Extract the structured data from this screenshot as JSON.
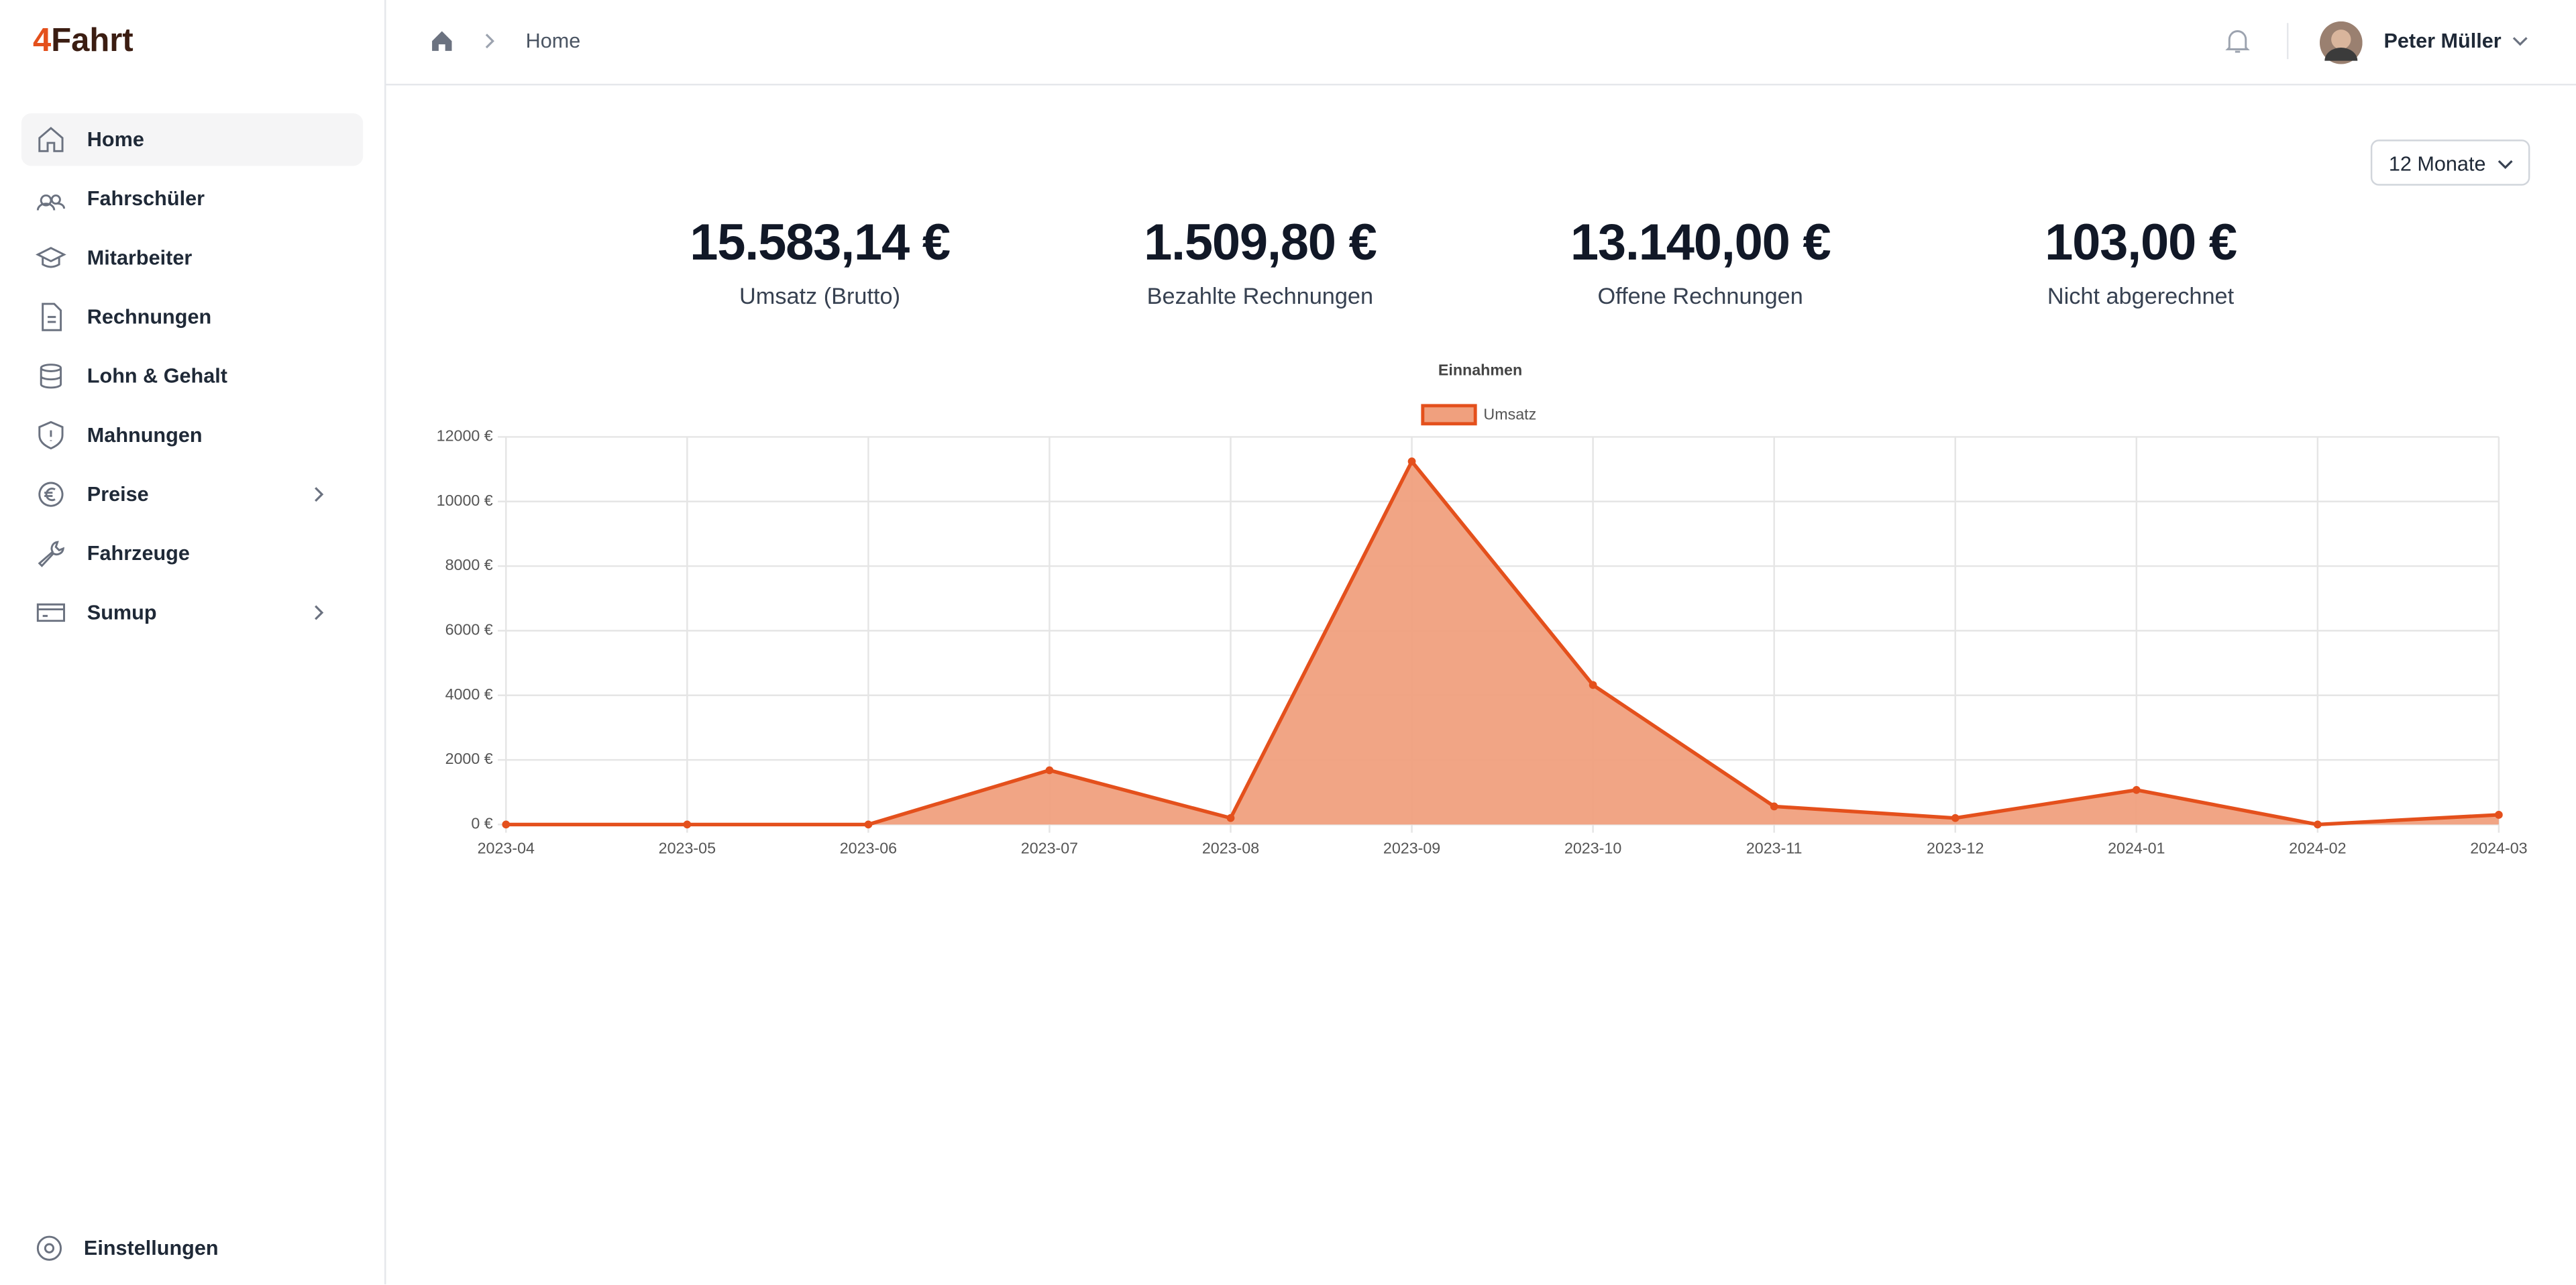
{
  "brand": {
    "prefix": "4",
    "name": "Fahrt"
  },
  "nav": [
    "Home",
    "Fahrschüler",
    "Mitarbeiter",
    "Rechnungen",
    "Lohn & Gehalt",
    "Mahnungen",
    "Preise",
    "Fahrzeuge",
    "Sumup"
  ],
  "settings": "Einstellungen",
  "breadcrumb": "Home",
  "user": "Peter Müller",
  "period": "12 Monate",
  "stats": [
    {
      "value": "15.583,14 €",
      "label": "Umsatz (Brutto)"
    },
    {
      "value": "1.509,80 €",
      "label": "Bezahlte Rechnungen"
    },
    {
      "value": "13.140,00 €",
      "label": "Offene Rechnungen"
    },
    {
      "value": "103,00 €",
      "label": "Nicht abgerechnet"
    }
  ],
  "chart_data": {
    "type": "area",
    "title": "Einnahmen",
    "categories": [
      "2023-04",
      "2023-05",
      "2023-06",
      "2023-07",
      "2023-08",
      "2023-09",
      "2023-10",
      "2023-11",
      "2023-12",
      "2024-01",
      "2024-02",
      "2024-03"
    ],
    "series": [
      {
        "name": "Umsatz",
        "color": "#e4501c",
        "fill": "#f0a07e",
        "values": [
          0,
          0,
          0,
          1680,
          200,
          11240,
          4320,
          560,
          200,
          1070,
          0,
          300
        ]
      }
    ],
    "ylim": [
      0,
      12000
    ],
    "yticks": [
      {
        "value": 0,
        "label": "0 €"
      },
      {
        "value": 2000,
        "label": "2000 €"
      },
      {
        "value": 4000,
        "label": "4000 €"
      },
      {
        "value": 6000,
        "label": "6000 €"
      },
      {
        "value": 8000,
        "label": "8000 €"
      },
      {
        "value": 10000,
        "label": "10000 €"
      },
      {
        "value": 12000,
        "label": "12000 €"
      }
    ],
    "grid": true
  }
}
